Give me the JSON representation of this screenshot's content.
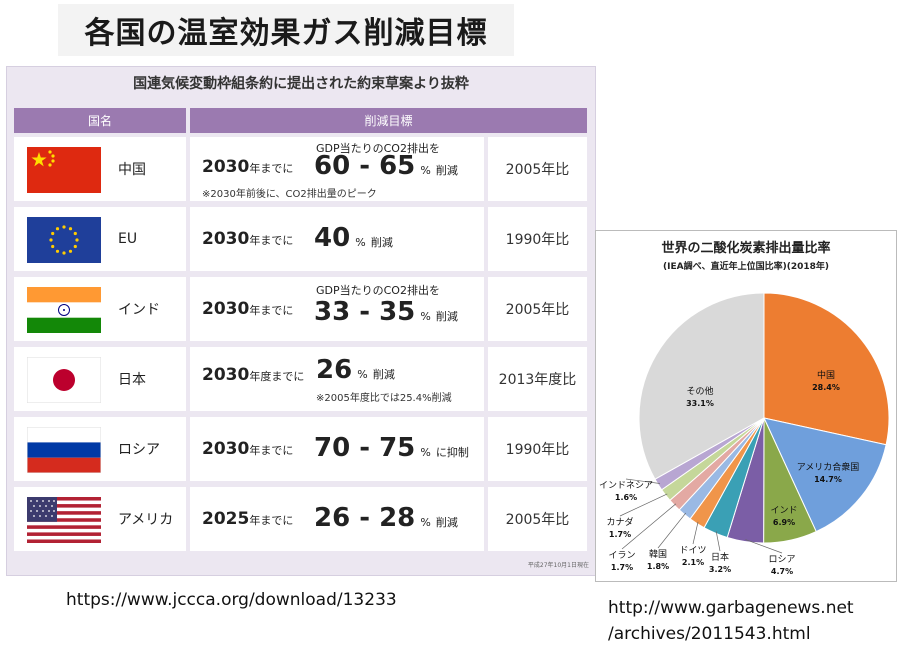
{
  "title": "各国の温室効果ガス削減目標",
  "table": {
    "subtitle": "国連気候変動枠組条約に提出された約束草案より抜粋",
    "header_country": "国名",
    "header_target": "削減目標",
    "footnote": "平成27年10月1日現在",
    "rows": [
      {
        "country": "中国",
        "flag": "china-flag",
        "year": "2030",
        "year_suffix": "年までに",
        "pre": "GDP当たりのCO2排出を",
        "value": "60 - 65",
        "unit": "%",
        "verb": "削減",
        "note": "※2030年前後に、CO2排出量のピーク",
        "base": "2005年比"
      },
      {
        "country": "EU",
        "flag": "eu-flag",
        "year": "2030",
        "year_suffix": "年までに",
        "pre": "",
        "value": "40",
        "unit": "%",
        "verb": "削減",
        "note": "",
        "base": "1990年比"
      },
      {
        "country": "インド",
        "flag": "india-flag",
        "year": "2030",
        "year_suffix": "年までに",
        "pre": "GDP当たりのCO2排出を",
        "value": "33 - 35",
        "unit": "%",
        "verb": "削減",
        "note": "",
        "base": "2005年比"
      },
      {
        "country": "日本",
        "flag": "japan-flag",
        "year": "2030",
        "year_suffix": "年度までに",
        "pre": "",
        "value": "26",
        "unit": "%",
        "verb": "削減",
        "note": "※2005年度比では25.4%削減",
        "base": "2013年度比"
      },
      {
        "country": "ロシア",
        "flag": "russia-flag",
        "year": "2030",
        "year_suffix": "年までに",
        "pre": "",
        "value": "70 - 75",
        "unit": "%",
        "verb": "に抑制",
        "note": "",
        "base": "1990年比"
      },
      {
        "country": "アメリカ",
        "flag": "usa-flag",
        "year": "2025",
        "year_suffix": "年までに",
        "pre": "",
        "value": "26 - 28",
        "unit": "%",
        "verb": "削減",
        "note": "",
        "base": "2005年比"
      }
    ]
  },
  "source_url_left": "https://www.jccca.org/download/13233",
  "source_url_right_line1": "http://www.garbagenews.net",
  "source_url_right_line2": "/archives/2011543.html",
  "chart_data": {
    "type": "pie",
    "title": "世界の二酸化炭素排出量比率",
    "subtitle": "(IEA調べ、直近年上位国比率)(2018年)",
    "series": [
      {
        "label": "中国",
        "value": 28.4,
        "value_label": "28.4%",
        "color": "#ed7d31"
      },
      {
        "label": "アメリカ合衆国",
        "value": 14.7,
        "value_label": "14.7%",
        "color": "#6f9fdc"
      },
      {
        "label": "インド",
        "value": 6.9,
        "value_label": "6.9%",
        "color": "#8aa84a"
      },
      {
        "label": "ロシア",
        "value": 4.7,
        "value_label": "4.7%",
        "color": "#7b5ea6"
      },
      {
        "label": "日本",
        "value": 3.2,
        "value_label": "3.2%",
        "color": "#3aa0b5"
      },
      {
        "label": "ドイツ",
        "value": 2.1,
        "value_label": "2.1%",
        "color": "#f0954a"
      },
      {
        "label": "韓国",
        "value": 1.8,
        "value_label": "1.8%",
        "color": "#9ab9e4"
      },
      {
        "label": "イラン",
        "value": 1.7,
        "value_label": "1.7%",
        "color": "#e3a9a3"
      },
      {
        "label": "カナダ",
        "value": 1.7,
        "value_label": "1.7%",
        "color": "#c5d79a"
      },
      {
        "label": "インドネシア",
        "value": 1.6,
        "value_label": "1.6%",
        "color": "#b8a6d2"
      },
      {
        "label": "その他",
        "value": 33.1,
        "value_label": "33.1%",
        "color": "#d9d9d9"
      }
    ]
  }
}
